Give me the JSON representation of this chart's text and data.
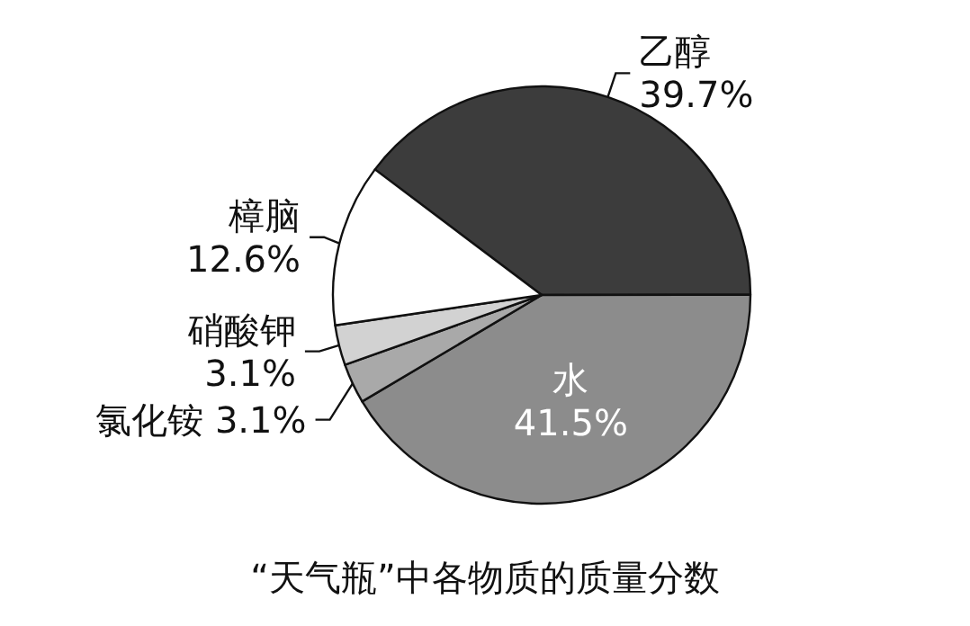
{
  "chart_data": {
    "type": "pie",
    "title": "“天气瓶”中各物质的质量分数",
    "categories": [
      "乙醇",
      "水",
      "氯化铵",
      "硝酸钾",
      "樟脑"
    ],
    "values": [
      39.7,
      41.5,
      3.1,
      3.1,
      12.6
    ],
    "colors": [
      "#3c3c3c",
      "#8c8c8c",
      "#a9a9a9",
      "#d2d2d2",
      "#ffffff"
    ],
    "value_labels": [
      "39.7%",
      "41.5%",
      "3.1%",
      "3.1%",
      "12.6%"
    ],
    "legend": false
  }
}
